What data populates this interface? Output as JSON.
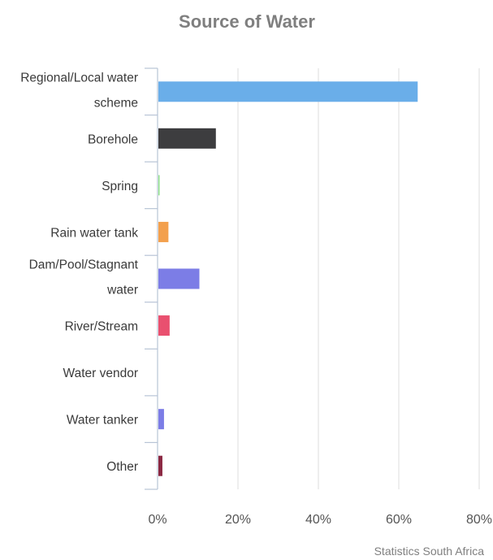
{
  "chart_data": {
    "type": "bar",
    "orientation": "horizontal",
    "title": "Source of Water",
    "categories": [
      "Regional/Local water scheme",
      "Borehole",
      "Spring",
      "Rain water tank",
      "Dam/Pool/Stagnant water",
      "River/Stream",
      "Water vendor",
      "Water tanker",
      "Other"
    ],
    "category_lines": [
      [
        "Regional/Local water",
        "scheme"
      ],
      [
        "Borehole"
      ],
      [
        "Spring"
      ],
      [
        "Rain water tank"
      ],
      [
        "Dam/Pool/Stagnant",
        "water"
      ],
      [
        "River/Stream"
      ],
      [
        "Water vendor"
      ],
      [
        "Water tanker"
      ],
      [
        "Other"
      ]
    ],
    "values": [
      64.5,
      14.3,
      0.3,
      2.5,
      10.2,
      2.8,
      0.0,
      1.4,
      1.0
    ],
    "colors": [
      "#6aaee9",
      "#3d3d3f",
      "#8fe08a",
      "#f3a04d",
      "#7c7de6",
      "#e9506f",
      "#c6b84f",
      "#7c7de6",
      "#8b2742"
    ],
    "xlim": [
      0,
      80
    ],
    "xticks": [
      0,
      20,
      40,
      60,
      80
    ],
    "tick_suffix": "%",
    "grid": true,
    "legend": "none"
  },
  "source_label": "Statistics South Africa"
}
